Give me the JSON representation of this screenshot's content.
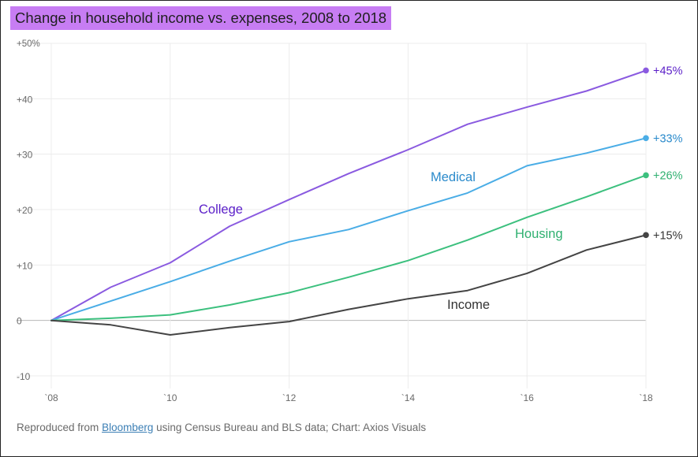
{
  "chart_data": {
    "type": "line",
    "title": "Change in household income vs. expenses, 2008 to 2018",
    "x": [
      2008,
      2009,
      2010,
      2011,
      2012,
      2013,
      2014,
      2015,
      2016,
      2017,
      2018
    ],
    "xticks": [
      2008,
      2010,
      2012,
      2014,
      2016,
      2018
    ],
    "xtick_labels": [
      "`08",
      "`10",
      "`12",
      "`14",
      "`16",
      "`18"
    ],
    "ylim": [
      -10,
      50
    ],
    "yticks": [
      -10,
      0,
      10,
      20,
      30,
      40,
      50
    ],
    "ytick_labels": [
      "-10",
      "0",
      "+10",
      "+20",
      "+30",
      "+40",
      "+50%"
    ],
    "grid": true,
    "series": [
      {
        "name": "College",
        "color": "#8a5ae0",
        "label_color": "#5a1ec8",
        "values": [
          0,
          6,
          10.4,
          17,
          21.8,
          26.5,
          30.8,
          35.4,
          38.5,
          41.4,
          45.1
        ],
        "end_label": "+45%"
      },
      {
        "name": "Medical",
        "color": "#4aade6",
        "label_color": "#2a8acb",
        "values": [
          0,
          3.5,
          7,
          10.7,
          14.2,
          16.4,
          19.8,
          23,
          27.9,
          30.2,
          32.9
        ],
        "end_label": "+33%"
      },
      {
        "name": "Housing",
        "color": "#3cc07e",
        "label_color": "#2fb070",
        "values": [
          0,
          0.4,
          1,
          2.8,
          5,
          7.8,
          10.8,
          14.5,
          18.6,
          22.3,
          26.2
        ],
        "end_label": "+26%"
      },
      {
        "name": "Income",
        "color": "#444444",
        "label_color": "#333333",
        "values": [
          0,
          -0.8,
          -2.6,
          -1.3,
          -0.2,
          2,
          3.9,
          5.4,
          8.5,
          12.7,
          15.4
        ],
        "end_label": "+15%"
      }
    ]
  },
  "source": {
    "prefix": "Reproduced from ",
    "link": "Bloomberg",
    "suffix": " using Census Bureau and BLS data; Chart: Axios Visuals"
  }
}
